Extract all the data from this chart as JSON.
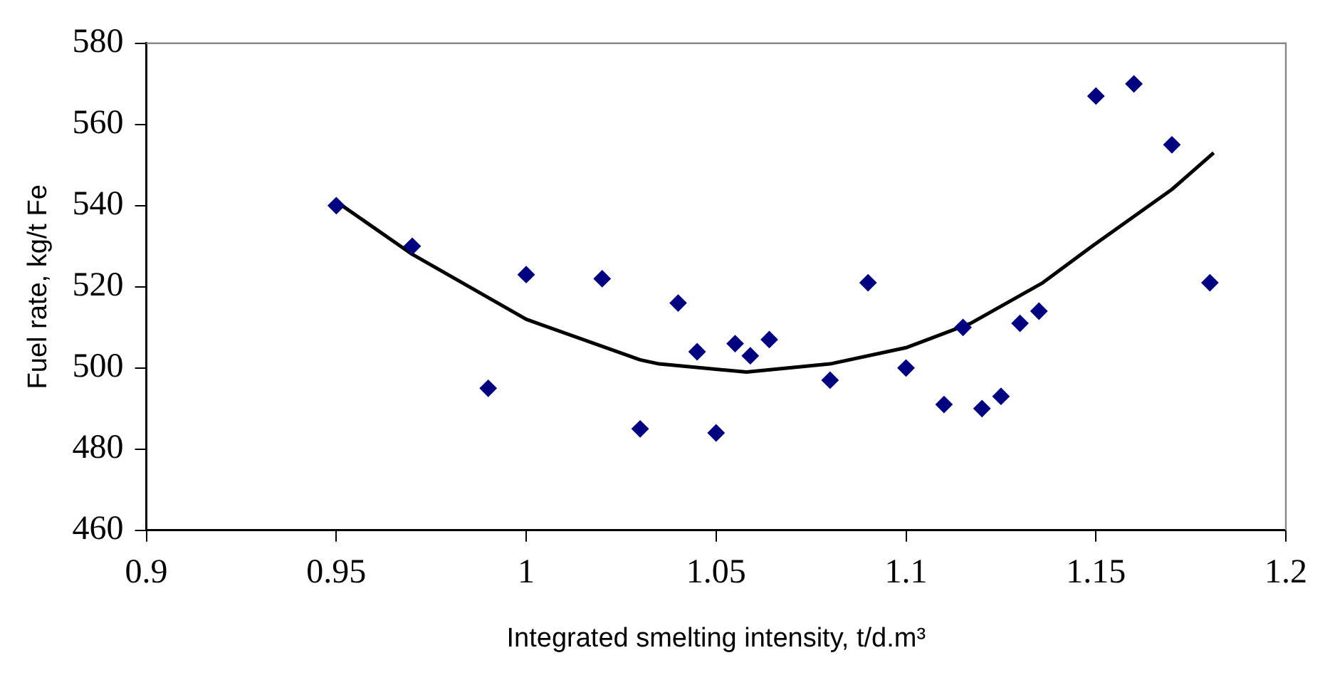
{
  "chart_data": {
    "type": "scatter",
    "xlabel": "Integrated smelting intensity, t/d.m³",
    "ylabel": "Fuel rate, kg/t Fe",
    "xlim": [
      0.9,
      1.2
    ],
    "xticks": [
      0.9,
      0.95,
      1,
      1.05,
      1.1,
      1.15,
      1.2
    ],
    "ylim": [
      460,
      580
    ],
    "yticks": [
      460,
      480,
      500,
      520,
      540,
      560,
      580
    ],
    "grid": false,
    "legend": false,
    "marker": "diamond",
    "series": [
      {
        "type": "scatter",
        "color": "#000080",
        "x": [
          0.95,
          0.97,
          0.99,
          1.0,
          1.02,
          1.03,
          1.04,
          1.045,
          1.05,
          1.055,
          1.059,
          1.064,
          1.08,
          1.09,
          1.1,
          1.11,
          1.115,
          1.12,
          1.125,
          1.13,
          1.135,
          1.15,
          1.16,
          1.17,
          1.18
        ],
        "values": [
          540,
          530,
          495,
          523,
          522,
          485,
          516,
          504,
          484,
          506,
          503,
          507,
          497,
          521,
          500,
          491,
          510,
          490,
          493,
          511,
          514,
          567,
          570,
          555,
          521
        ]
      },
      {
        "type": "line",
        "color": "#000000",
        "marker": "none",
        "line_style": "solid",
        "x": [
          0.95,
          0.97,
          1.0,
          1.03,
          1.035,
          1.058,
          1.08,
          1.1,
          1.117,
          1.136,
          1.149,
          1.17,
          1.181
        ],
        "values": [
          541,
          528,
          512,
          502,
          501,
          499,
          501,
          505,
          511,
          521,
          530,
          544,
          553
        ]
      }
    ]
  }
}
